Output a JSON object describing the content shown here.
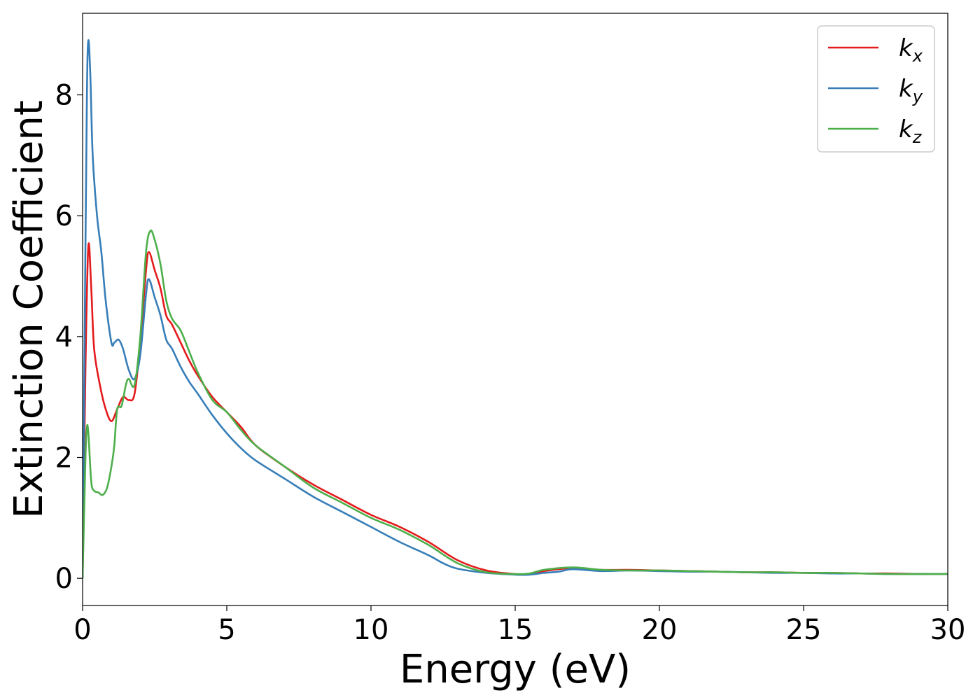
{
  "chart_data": {
    "type": "line",
    "title": "",
    "xlabel": "Energy (eV)",
    "ylabel": "Extinction Coefficient",
    "xlim": [
      0,
      30
    ],
    "ylim": [
      -0.45,
      9.35
    ],
    "x_ticks": [
      0,
      5,
      10,
      15,
      20,
      25,
      30
    ],
    "y_ticks": [
      0,
      2,
      4,
      6,
      8
    ],
    "grid": false,
    "legend_position": "top-right",
    "series": [
      {
        "name": "k_x",
        "base": "k",
        "sub": "x",
        "color": "#e41a1c",
        "points": [
          [
            0,
            0
          ],
          [
            0.1,
            3.5
          ],
          [
            0.2,
            5.5
          ],
          [
            0.3,
            4.8
          ],
          [
            0.4,
            3.8
          ],
          [
            0.6,
            3.2
          ],
          [
            0.8,
            2.8
          ],
          [
            1.0,
            2.6
          ],
          [
            1.2,
            2.8
          ],
          [
            1.4,
            3.0
          ],
          [
            1.6,
            2.95
          ],
          [
            1.8,
            3.05
          ],
          [
            2.0,
            3.9
          ],
          [
            2.2,
            5.1
          ],
          [
            2.3,
            5.4
          ],
          [
            2.5,
            5.1
          ],
          [
            2.7,
            4.8
          ],
          [
            2.9,
            4.35
          ],
          [
            3.1,
            4.2
          ],
          [
            3.4,
            3.9
          ],
          [
            3.7,
            3.6
          ],
          [
            4.0,
            3.35
          ],
          [
            4.5,
            3.0
          ],
          [
            5.0,
            2.75
          ],
          [
            5.5,
            2.5
          ],
          [
            6.0,
            2.2
          ],
          [
            7.0,
            1.85
          ],
          [
            8.0,
            1.55
          ],
          [
            9.0,
            1.3
          ],
          [
            10.0,
            1.05
          ],
          [
            11.0,
            0.85
          ],
          [
            12.0,
            0.6
          ],
          [
            13.0,
            0.3
          ],
          [
            14.0,
            0.13
          ],
          [
            15.0,
            0.07
          ],
          [
            15.5,
            0.07
          ],
          [
            16.0,
            0.12
          ],
          [
            17.0,
            0.17
          ],
          [
            18.0,
            0.14
          ],
          [
            19.0,
            0.14
          ],
          [
            20.0,
            0.13
          ],
          [
            21.0,
            0.12
          ],
          [
            22.0,
            0.11
          ],
          [
            23.0,
            0.1
          ],
          [
            24.0,
            0.1
          ],
          [
            25.0,
            0.09
          ],
          [
            26.0,
            0.09
          ],
          [
            27.0,
            0.08
          ],
          [
            28.0,
            0.08
          ],
          [
            29.0,
            0.07
          ],
          [
            30.0,
            0.07
          ]
        ]
      },
      {
        "name": "k_y",
        "base": "k",
        "sub": "y",
        "color": "#377eb8",
        "points": [
          [
            0,
            0
          ],
          [
            0.08,
            4.5
          ],
          [
            0.15,
            8.0
          ],
          [
            0.2,
            8.9
          ],
          [
            0.27,
            8.3
          ],
          [
            0.35,
            7.0
          ],
          [
            0.5,
            6.0
          ],
          [
            0.65,
            5.4
          ],
          [
            0.8,
            4.6
          ],
          [
            1.0,
            3.9
          ],
          [
            1.1,
            3.9
          ],
          [
            1.25,
            3.95
          ],
          [
            1.4,
            3.8
          ],
          [
            1.6,
            3.45
          ],
          [
            1.8,
            3.3
          ],
          [
            2.0,
            3.7
          ],
          [
            2.2,
            4.7
          ],
          [
            2.3,
            4.95
          ],
          [
            2.5,
            4.65
          ],
          [
            2.7,
            4.35
          ],
          [
            2.9,
            3.95
          ],
          [
            3.1,
            3.8
          ],
          [
            3.4,
            3.5
          ],
          [
            3.7,
            3.25
          ],
          [
            4.0,
            3.05
          ],
          [
            4.5,
            2.7
          ],
          [
            5.0,
            2.4
          ],
          [
            5.5,
            2.15
          ],
          [
            6.0,
            1.95
          ],
          [
            7.0,
            1.65
          ],
          [
            8.0,
            1.35
          ],
          [
            9.0,
            1.1
          ],
          [
            10.0,
            0.85
          ],
          [
            11.0,
            0.6
          ],
          [
            12.0,
            0.38
          ],
          [
            12.5,
            0.25
          ],
          [
            13.0,
            0.16
          ],
          [
            14.0,
            0.09
          ],
          [
            15.0,
            0.06
          ],
          [
            15.5,
            0.06
          ],
          [
            16.0,
            0.09
          ],
          [
            16.5,
            0.11
          ],
          [
            17.0,
            0.15
          ],
          [
            18.0,
            0.12
          ],
          [
            19.0,
            0.13
          ],
          [
            20.0,
            0.12
          ],
          [
            21.0,
            0.11
          ],
          [
            22.0,
            0.11
          ],
          [
            23.0,
            0.1
          ],
          [
            24.0,
            0.09
          ],
          [
            25.0,
            0.09
          ],
          [
            26.0,
            0.08
          ],
          [
            27.0,
            0.08
          ],
          [
            28.0,
            0.07
          ],
          [
            29.0,
            0.07
          ],
          [
            30.0,
            0.07
          ]
        ]
      },
      {
        "name": "k_z",
        "base": "k",
        "sub": "z",
        "color": "#4daf4a",
        "points": [
          [
            0,
            0
          ],
          [
            0.1,
            2.0
          ],
          [
            0.15,
            2.5
          ],
          [
            0.2,
            2.4
          ],
          [
            0.3,
            1.6
          ],
          [
            0.4,
            1.45
          ],
          [
            0.55,
            1.42
          ],
          [
            0.7,
            1.38
          ],
          [
            0.85,
            1.5
          ],
          [
            1.0,
            1.85
          ],
          [
            1.1,
            2.2
          ],
          [
            1.2,
            2.8
          ],
          [
            1.35,
            2.85
          ],
          [
            1.5,
            3.2
          ],
          [
            1.6,
            3.3
          ],
          [
            1.8,
            3.2
          ],
          [
            2.0,
            4.0
          ],
          [
            2.2,
            5.4
          ],
          [
            2.35,
            5.75
          ],
          [
            2.5,
            5.6
          ],
          [
            2.7,
            5.2
          ],
          [
            2.9,
            4.6
          ],
          [
            3.1,
            4.3
          ],
          [
            3.4,
            4.1
          ],
          [
            3.7,
            3.75
          ],
          [
            4.0,
            3.4
          ],
          [
            4.5,
            2.95
          ],
          [
            5.0,
            2.75
          ],
          [
            5.5,
            2.45
          ],
          [
            6.0,
            2.2
          ],
          [
            7.0,
            1.85
          ],
          [
            8.0,
            1.5
          ],
          [
            9.0,
            1.25
          ],
          [
            10.0,
            1.0
          ],
          [
            11.0,
            0.8
          ],
          [
            12.0,
            0.55
          ],
          [
            13.0,
            0.25
          ],
          [
            14.0,
            0.1
          ],
          [
            15.0,
            0.07
          ],
          [
            15.5,
            0.08
          ],
          [
            16.0,
            0.14
          ],
          [
            17.0,
            0.18
          ],
          [
            18.0,
            0.14
          ],
          [
            19.0,
            0.13
          ],
          [
            20.0,
            0.13
          ],
          [
            21.0,
            0.12
          ],
          [
            22.0,
            0.11
          ],
          [
            23.0,
            0.1
          ],
          [
            24.0,
            0.1
          ],
          [
            25.0,
            0.09
          ],
          [
            26.0,
            0.09
          ],
          [
            27.0,
            0.08
          ],
          [
            28.0,
            0.07
          ],
          [
            29.0,
            0.07
          ],
          [
            30.0,
            0.07
          ]
        ]
      }
    ]
  }
}
